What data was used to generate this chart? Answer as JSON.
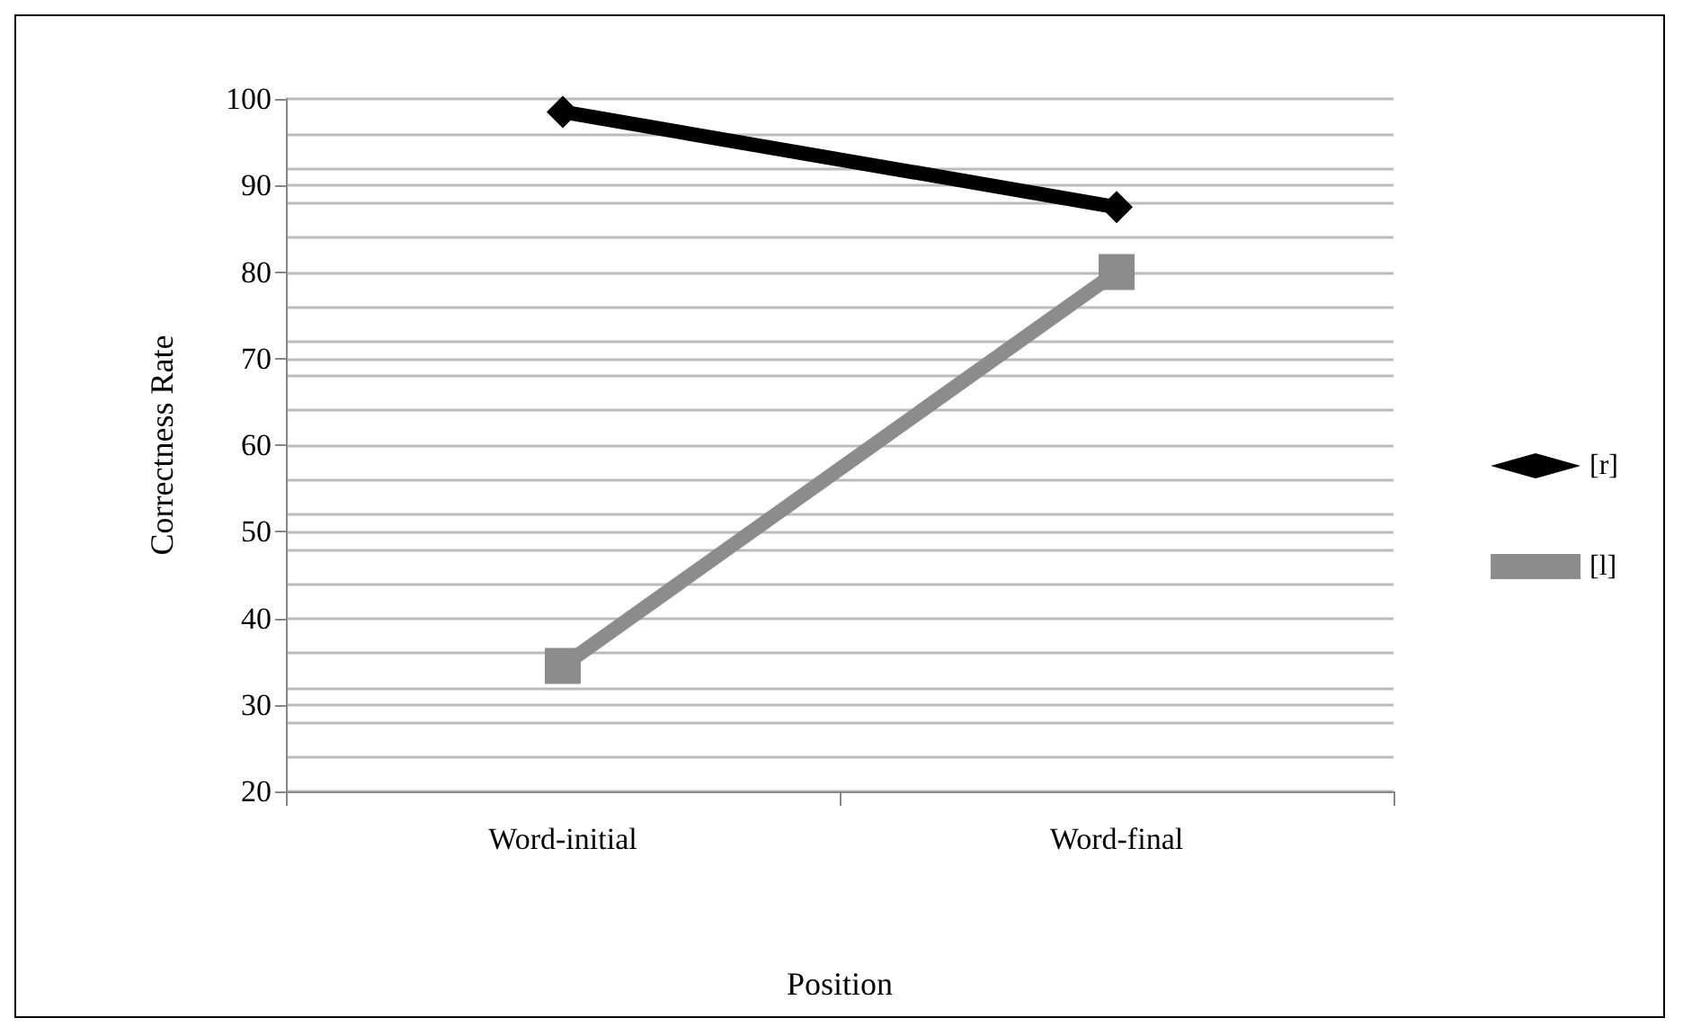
{
  "chart_data": {
    "type": "line",
    "xlabel": "Position",
    "ylabel": "Correctness Rate",
    "categories": [
      "Word-initial",
      "Word-final"
    ],
    "series": [
      {
        "name": "[r]",
        "color": "#000000",
        "marker": "diamond",
        "values": [
          98.5,
          87.5
        ]
      },
      {
        "name": "[l]",
        "color": "#8c8c8c",
        "marker": "square",
        "values": [
          34.5,
          80
        ]
      }
    ],
    "ylim": [
      20,
      100
    ],
    "yticks": [
      20,
      30,
      40,
      50,
      60,
      70,
      80,
      90,
      100
    ],
    "grid": true,
    "legend": "right"
  }
}
